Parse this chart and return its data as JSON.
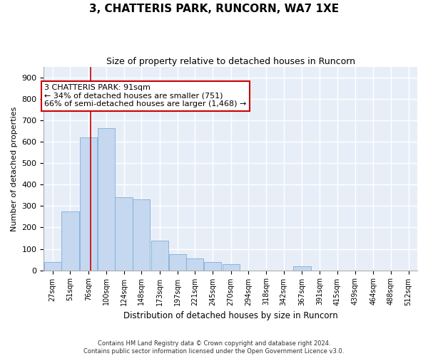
{
  "title": "3, CHATTERIS PARK, RUNCORN, WA7 1XE",
  "subtitle": "Size of property relative to detached houses in Runcorn",
  "xlabel": "Distribution of detached houses by size in Runcorn",
  "ylabel": "Number of detached properties",
  "footnote1": "Contains HM Land Registry data © Crown copyright and database right 2024.",
  "footnote2": "Contains public sector information licensed under the Open Government Licence v3.0.",
  "bar_color": "#c5d8f0",
  "bar_edge_color": "#7bafd4",
  "background_color": "#e8eef8",
  "grid_color": "#ffffff",
  "property_line_color": "#cc0000",
  "property_size": 91,
  "annotation_text": "3 CHATTERIS PARK: 91sqm\n← 34% of detached houses are smaller (751)\n66% of semi-detached houses are larger (1,468) →",
  "bin_labels": [
    "27sqm",
    "51sqm",
    "76sqm",
    "100sqm",
    "124sqm",
    "148sqm",
    "173sqm",
    "197sqm",
    "221sqm",
    "245sqm",
    "270sqm",
    "294sqm",
    "318sqm",
    "342sqm",
    "367sqm",
    "391sqm",
    "415sqm",
    "439sqm",
    "464sqm",
    "488sqm",
    "512sqm"
  ],
  "bin_edges": [
    27,
    51,
    76,
    100,
    124,
    148,
    173,
    197,
    221,
    245,
    270,
    294,
    318,
    342,
    367,
    391,
    415,
    439,
    464,
    488,
    512
  ],
  "bar_heights": [
    40,
    275,
    620,
    665,
    340,
    330,
    140,
    75,
    55,
    40,
    30,
    0,
    0,
    0,
    20,
    0,
    0,
    0,
    0,
    0,
    0
  ],
  "ylim": [
    0,
    950
  ],
  "yticks": [
    0,
    100,
    200,
    300,
    400,
    500,
    600,
    700,
    800,
    900
  ]
}
